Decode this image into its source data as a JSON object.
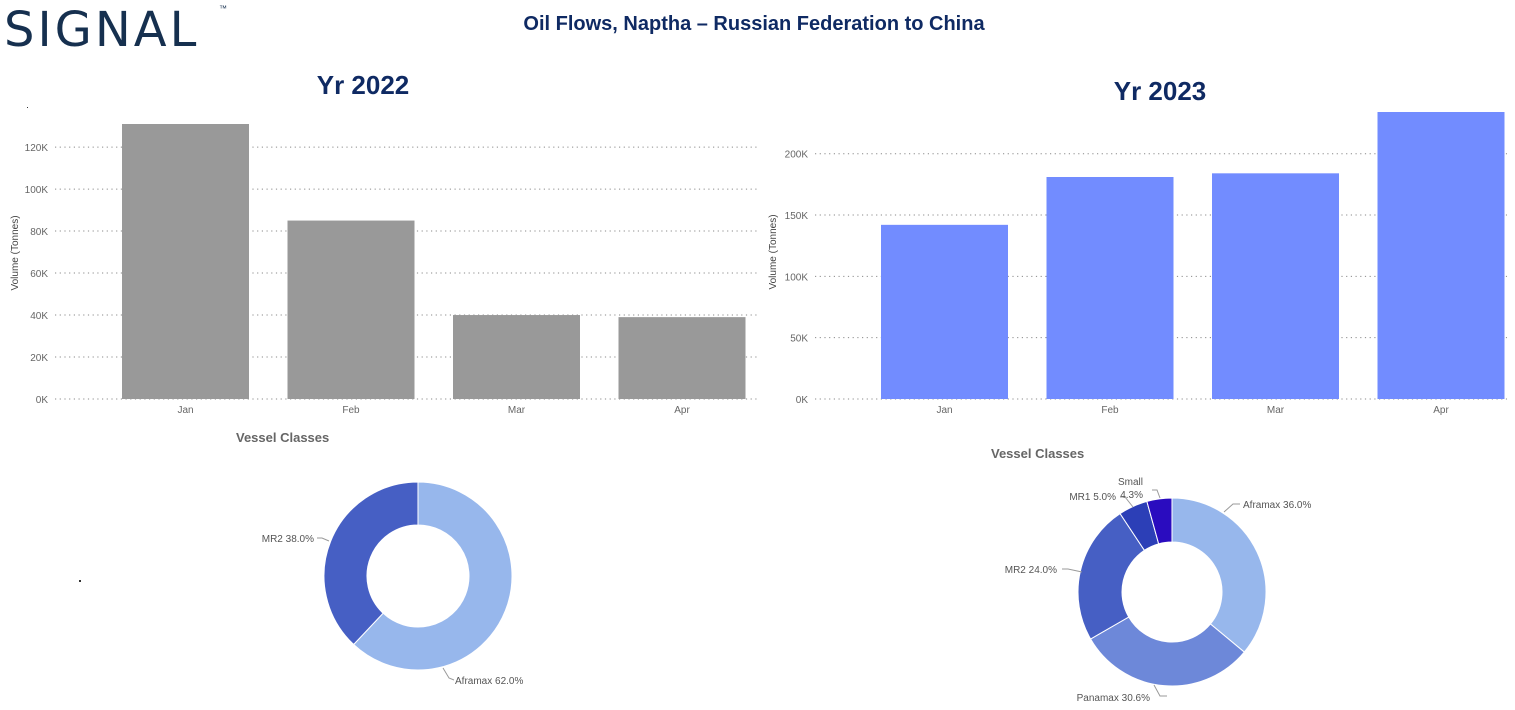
{
  "brand": {
    "logo_text": "SIGNAL",
    "trademark": "™"
  },
  "report_title": "Oil Flows, Naptha – Russian Federation to China",
  "chart_data": [
    {
      "id": "bar2022",
      "type": "bar",
      "title": "Yr 2022",
      "xlabel": "",
      "ylabel": "Volume (Tonnes)",
      "categories": [
        "Jan",
        "Feb",
        "Mar",
        "Apr"
      ],
      "values": [
        131000,
        85000,
        40000,
        39000
      ],
      "ylim": [
        0,
        131000
      ],
      "yticks": [
        0,
        20000,
        40000,
        60000,
        80000,
        100000,
        120000
      ],
      "ytick_labels": [
        "0K",
        "20K",
        "40K",
        "60K",
        "80K",
        "100K",
        "120K"
      ],
      "color": "#999999",
      "grid": "dotted horizontal"
    },
    {
      "id": "bar2023",
      "type": "bar",
      "title": "Yr 2023",
      "xlabel": "",
      "ylabel": "Volume (Tonnes)",
      "categories": [
        "Jan",
        "Feb",
        "Mar",
        "Apr"
      ],
      "values": [
        142000,
        181000,
        184000,
        234000
      ],
      "ylim": [
        0,
        234000
      ],
      "yticks": [
        0,
        50000,
        100000,
        150000,
        200000
      ],
      "ytick_labels": [
        "0K",
        "50K",
        "100K",
        "150K",
        "200K"
      ],
      "color": "#728cff",
      "grid": "dotted horizontal"
    },
    {
      "id": "donut2022",
      "type": "pie",
      "title": "Vessel Classes",
      "slices": [
        {
          "label": "Aframax",
          "value": 62.0,
          "text": "Aframax 62.0%",
          "color": "#97b7ec"
        },
        {
          "label": "MR2",
          "value": 38.0,
          "text": "MR2 38.0%",
          "color": "#465fc4"
        }
      ]
    },
    {
      "id": "donut2023",
      "type": "pie",
      "title": "Vessel Classes",
      "slices": [
        {
          "label": "Aframax",
          "value": 36.0,
          "text": "Aframax 36.0%",
          "color": "#97b7ec"
        },
        {
          "label": "Panamax",
          "value": 30.6,
          "text": "Panamax 30.6%",
          "color": "#6d88d9"
        },
        {
          "label": "MR2",
          "value": 24.0,
          "text": "MR2 24.0%",
          "color": "#465fc4"
        },
        {
          "label": "MR1",
          "value": 5.0,
          "text": "MR1 5.0%",
          "color": "#2c3fb7"
        },
        {
          "label": "Small",
          "value": 4.3,
          "text": "4.3%",
          "name_text": "Small",
          "color": "#2a0cbf"
        }
      ]
    }
  ]
}
